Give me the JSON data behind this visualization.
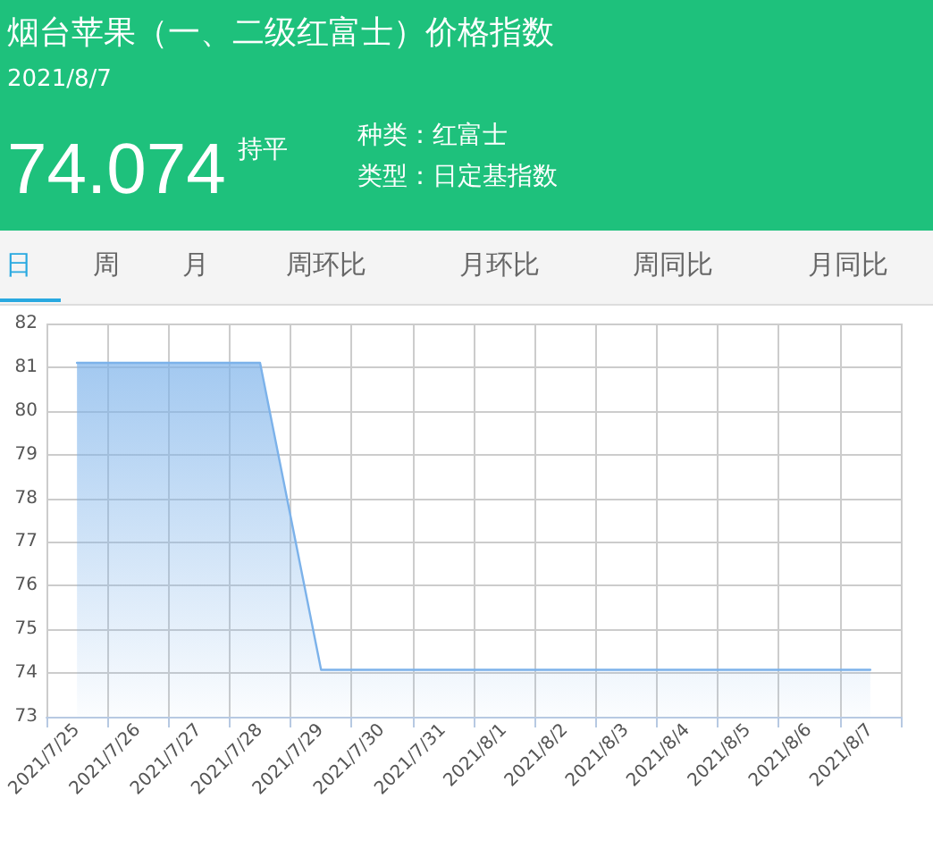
{
  "chart_data": {
    "type": "area",
    "title": "烟台苹果（一、二级红富士）价格指数",
    "subtitle": "2021/8/7",
    "annotations": [
      "74.074",
      "持平",
      "种类：红富士",
      "类型：日定基指数",
      "日",
      "周",
      "月",
      "周环比",
      "月环比",
      "周同比",
      "月同比"
    ],
    "categories": [
      "2021/7/25",
      "2021/7/26",
      "2021/7/27",
      "2021/7/28",
      "2021/7/29",
      "2021/7/30",
      "2021/7/31",
      "2021/8/1",
      "2021/8/2",
      "2021/8/3",
      "2021/8/4",
      "2021/8/5",
      "2021/8/6",
      "2021/8/7"
    ],
    "series": [
      {
        "color": "#7cb2ea",
        "values": [
          81.1,
          81.1,
          81.1,
          81.1,
          74.074,
          74.074,
          74.074,
          74.074,
          74.074,
          74.074,
          74.074,
          74.074,
          74.074,
          74.074
        ]
      }
    ],
    "ylim": [
      73,
      82
    ],
    "yticks": [
      73,
      74,
      75,
      76,
      77,
      78,
      79,
      80,
      81,
      82
    ],
    "grid": true,
    "marker": "none",
    "line_style": "solid"
  }
}
